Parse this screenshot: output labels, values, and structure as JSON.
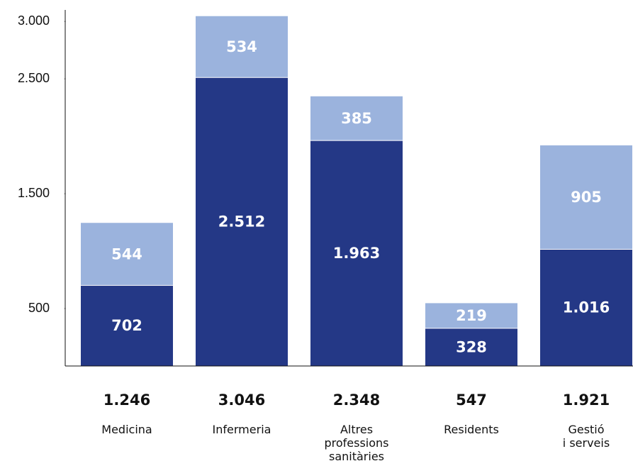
{
  "chart_data": {
    "type": "stacked_bar",
    "categories": [
      "Medicina",
      "Infermeria",
      "Altres\nprofessions\nsanitàries",
      "Residents",
      "Gestió\ni serveis"
    ],
    "series": [
      {
        "color": "#243886",
        "values": [
          702,
          2512,
          1963,
          328,
          1016
        ],
        "value_labels": [
          "702",
          "2.512",
          "1.963",
          "328",
          "1.016"
        ]
      },
      {
        "color": "#9bb3dd",
        "values": [
          544,
          534,
          385,
          219,
          905
        ],
        "value_labels": [
          "544",
          "534",
          "385",
          "219",
          "905"
        ]
      }
    ],
    "totals": {
      "values": [
        1246,
        3046,
        2348,
        547,
        1921
      ],
      "value_labels": [
        "1.246",
        "3.046",
        "2.348",
        "547",
        "1.921"
      ]
    },
    "ylim": [
      0,
      3100
    ],
    "yticks": [
      500,
      {
        "value": 1500,
        "label": "1.500"
      },
      {
        "value": 2500,
        "label": "2.500"
      },
      {
        "value": 3000,
        "label": "3.000"
      }
    ]
  }
}
